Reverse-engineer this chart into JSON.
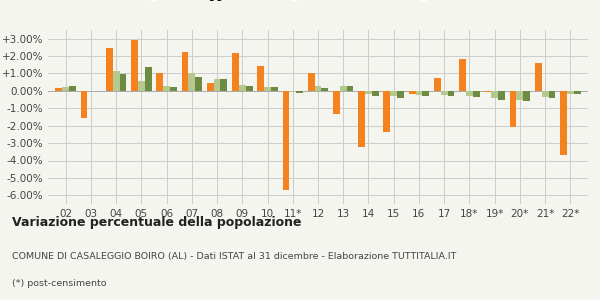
{
  "years": [
    "02",
    "03",
    "04",
    "05",
    "06",
    "07",
    "08",
    "09",
    "10",
    "11*",
    "12",
    "13",
    "14",
    "15",
    "16",
    "17",
    "18*",
    "19*",
    "20*",
    "21*",
    "22*"
  ],
  "casaleggio": [
    0.15,
    -1.55,
    2.45,
    2.95,
    1.05,
    2.25,
    0.45,
    2.2,
    1.45,
    -5.7,
    1.0,
    -1.3,
    -3.2,
    -2.35,
    -0.2,
    0.75,
    1.85,
    -0.05,
    -2.1,
    1.6,
    -3.7
  ],
  "provincia_al": [
    0.2,
    0.0,
    1.15,
    0.55,
    0.3,
    1.0,
    0.7,
    0.35,
    0.2,
    -0.05,
    0.3,
    0.3,
    -0.15,
    -0.3,
    -0.25,
    -0.25,
    -0.3,
    -0.4,
    -0.5,
    -0.35,
    -0.15
  ],
  "piemonte": [
    0.3,
    0.0,
    0.95,
    1.35,
    0.25,
    0.8,
    0.7,
    0.3,
    0.25,
    -0.1,
    0.15,
    0.3,
    -0.3,
    -0.4,
    -0.3,
    -0.3,
    -0.35,
    -0.5,
    -0.6,
    -0.4,
    -0.2
  ],
  "color_casaleggio": "#f5811f",
  "color_provincia": "#b5c98e",
  "color_piemonte": "#6b8c42",
  "bg_color": "#f5f5f0",
  "grid_color": "#cccccc",
  "title": "Variazione percentuale della popolazione",
  "subtitle": "COMUNE DI CASALEGGIO BOIRO (AL) - Dati ISTAT al 31 dicembre - Elaborazione TUTTITALIA.IT",
  "footnote": "(*) post-censimento",
  "ylim": [
    -6.5,
    3.5
  ],
  "yticks": [
    -6.0,
    -5.0,
    -4.0,
    -3.0,
    -2.0,
    -1.0,
    0.0,
    1.0,
    2.0,
    3.0
  ]
}
